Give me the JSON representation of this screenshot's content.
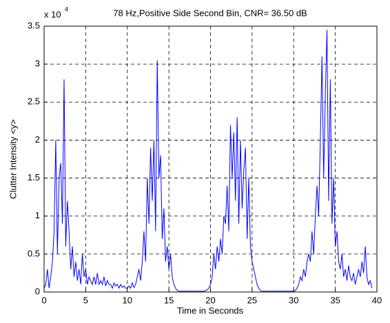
{
  "chart_data": {
    "type": "line",
    "title": "78 Hz,Positive Side Second Bin, CNR= 36.50 dB",
    "x_label": "Time in Seconds",
    "y_label": "Clutter Intensity <y>",
    "y_exponent_base": "x 10",
    "y_exponent": "4",
    "xlim": [
      0,
      40
    ],
    "xticks": [
      0,
      5,
      10,
      15,
      20,
      25,
      30,
      35,
      40
    ],
    "ylim": [
      0,
      3.5
    ],
    "yticks": [
      0,
      0.5,
      1,
      1.5,
      2,
      2.5,
      3,
      3.5
    ],
    "grid": true,
    "series": [
      {
        "color": "#0000ff",
        "x": [
          0,
          0.2,
          0.4,
          0.6,
          0.8,
          1,
          1.2,
          1.4,
          1.6,
          1.8,
          2,
          2.2,
          2.4,
          2.6,
          2.8,
          3,
          3.2,
          3.4,
          3.6,
          3.8,
          4,
          4.2,
          4.4,
          4.6,
          4.8,
          5,
          5.2,
          5.4,
          5.6,
          5.8,
          6,
          6.2,
          6.4,
          6.6,
          6.8,
          7,
          7.2,
          7.4,
          7.6,
          7.8,
          8,
          8.2,
          8.4,
          8.6,
          8.8,
          9,
          9.2,
          9.4,
          9.6,
          9.8,
          10,
          10.2,
          10.4,
          10.6,
          10.8,
          11,
          11.2,
          11.4,
          11.6,
          11.8,
          12,
          12.2,
          12.4,
          12.6,
          12.8,
          13,
          13.2,
          13.4,
          13.6,
          13.8,
          14,
          14.2,
          14.4,
          14.6,
          14.8,
          15,
          15.2,
          15.4,
          15.6,
          15.8,
          16,
          16.2,
          16.4,
          16.6,
          16.8,
          17,
          17.2,
          17.4,
          17.6,
          17.8,
          18,
          18.2,
          18.4,
          18.6,
          18.8,
          19,
          19.2,
          19.4,
          19.6,
          19.8,
          20,
          20.2,
          20.4,
          20.6,
          20.8,
          21,
          21.2,
          21.4,
          21.6,
          21.8,
          22,
          22.2,
          22.4,
          22.6,
          22.8,
          23,
          23.2,
          23.4,
          23.6,
          23.8,
          24,
          24.2,
          24.4,
          24.6,
          24.8,
          25,
          25.2,
          25.4,
          25.6,
          25.8,
          26,
          26.2,
          26.4,
          26.6,
          26.8,
          27,
          27.2,
          27.4,
          27.6,
          27.8,
          28,
          28.2,
          28.4,
          28.6,
          28.8,
          29,
          29.2,
          29.4,
          29.6,
          29.8,
          30,
          30.2,
          30.4,
          30.6,
          30.8,
          31,
          31.2,
          31.4,
          31.6,
          31.8,
          32,
          32.2,
          32.4,
          32.6,
          32.8,
          33,
          33.2,
          33.4,
          33.6,
          33.8,
          34,
          34.2,
          34.4,
          34.6,
          34.8,
          35,
          35.2,
          35.4,
          35.6,
          35.8,
          36,
          36.2,
          36.4,
          36.6,
          36.8,
          37,
          37.2,
          37.4,
          37.6,
          37.8,
          38,
          38.2,
          38.4,
          38.6,
          38.8,
          39,
          39.2,
          39.4
        ],
        "values": [
          0.05,
          0.1,
          0.3,
          0.05,
          0.2,
          0.4,
          0.8,
          2.0,
          0.5,
          1.5,
          1.7,
          0.9,
          2.8,
          0.6,
          1.2,
          0.8,
          0.3,
          0.6,
          0.2,
          0.4,
          0.15,
          0.3,
          0.1,
          0.5,
          0.2,
          0.3,
          0.1,
          0.2,
          0.15,
          0.1,
          0.2,
          0.1,
          0.25,
          0.1,
          0.15,
          0.1,
          0.2,
          0.08,
          0.15,
          0.1,
          0.1,
          0.05,
          0.12,
          0.08,
          0.1,
          0.05,
          0.1,
          0.06,
          0.08,
          0.05,
          0.05,
          0.08,
          0.05,
          0.12,
          0.06,
          0.1,
          0.2,
          0.3,
          0.15,
          0.4,
          0.8,
          0.4,
          1.5,
          0.9,
          1.9,
          1.2,
          2.0,
          0.8,
          3.05,
          1.5,
          1.8,
          0.7,
          1.1,
          0.4,
          0.6,
          0.3,
          0.5,
          0.2,
          0.1,
          0.05,
          0.02,
          0.01,
          0.01,
          0.01,
          0.01,
          0.01,
          0.01,
          0.01,
          0.01,
          0.01,
          0.01,
          0.01,
          0.01,
          0.01,
          0.01,
          0.01,
          0.01,
          0.02,
          0.03,
          0.05,
          0.1,
          0.2,
          0.5,
          0.3,
          0.6,
          0.4,
          0.7,
          0.5,
          1.0,
          0.9,
          1.4,
          0.8,
          2.2,
          1.5,
          2.1,
          1.2,
          2.3,
          0.9,
          2.0,
          1.1,
          1.6,
          1.9,
          0.7,
          1.5,
          0.6,
          0.4,
          0.3,
          0.2,
          0.1,
          0.05,
          0.02,
          0.01,
          0.01,
          0.01,
          0.01,
          0.01,
          0.01,
          0.01,
          0.01,
          0.01,
          0.01,
          0.01,
          0.01,
          0.01,
          0.01,
          0.01,
          0.01,
          0.01,
          0.01,
          0.01,
          0.01,
          0.02,
          0.05,
          0.1,
          0.2,
          0.15,
          0.3,
          0.2,
          0.4,
          0.5,
          0.4,
          0.8,
          0.5,
          1.0,
          1.4,
          1.0,
          2.0,
          3.1,
          1.5,
          2.6,
          3.45,
          1.2,
          2.8,
          0.9,
          1.5,
          0.6,
          0.8,
          0.4,
          0.3,
          0.5,
          0.2,
          0.3,
          0.15,
          0.35,
          0.2,
          0.15,
          0.25,
          0.1,
          0.2,
          0.3,
          0.2,
          0.4,
          0.25,
          0.6,
          0.2,
          0.1,
          0.15,
          0.05
        ]
      }
    ]
  }
}
